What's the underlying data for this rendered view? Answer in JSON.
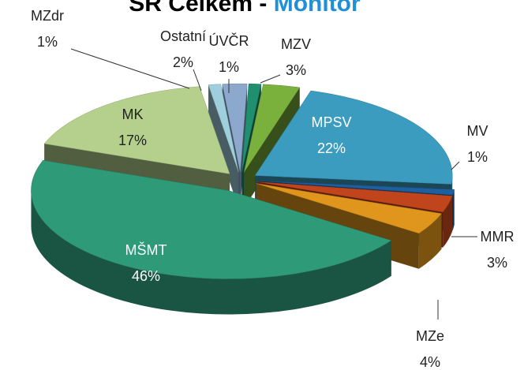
{
  "chart_data": {
    "type": "pie3d",
    "title_parts": [
      "SR Celkem -",
      "Monitor"
    ],
    "title_colors": [
      "#000000",
      "#1f8fd6"
    ],
    "categories": [
      "ÚVČR",
      "MZV",
      "MPSV",
      "MV",
      "MMR",
      "MZe",
      "MŠMT",
      "MK",
      "MZdr",
      "Ostatní"
    ],
    "values": [
      1,
      3,
      22,
      1,
      3,
      4,
      46,
      17,
      1,
      2
    ],
    "value_labels": [
      "1%",
      "3%",
      "22%",
      "1%",
      "3%",
      "4%",
      "46%",
      "17%",
      "1%",
      "2%"
    ],
    "colors": [
      "#1f8f6f",
      "#7ab03c",
      "#3b9cc0",
      "#1f5f9f",
      "#c0451c",
      "#e0961c",
      "#2e9a78",
      "#b4d08c",
      "#9fcfdc",
      "#8ca8cc"
    ]
  }
}
